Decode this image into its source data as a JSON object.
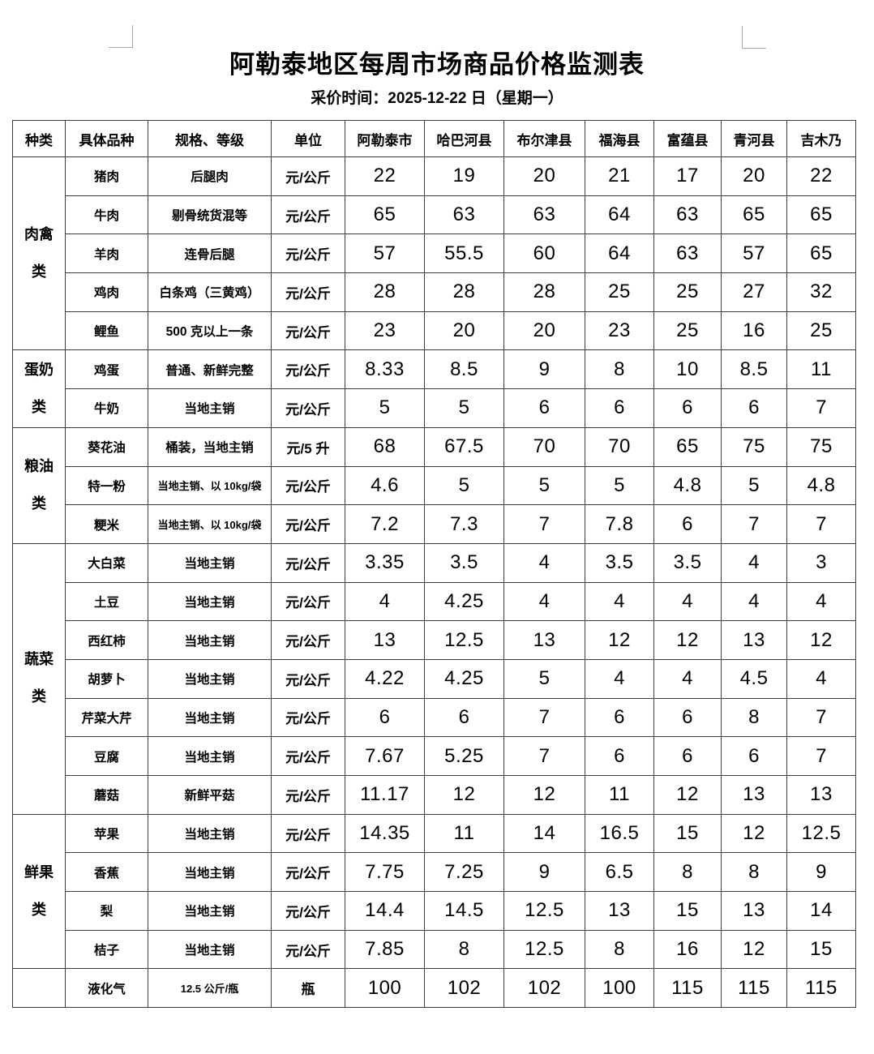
{
  "page": {
    "title": "阿勒泰地区每周市场商品价格监测表",
    "subtitle": "采价时间：2025-12-22 日（星期一）"
  },
  "table": {
    "columns": [
      "种类",
      "具体品种",
      "规格、等级",
      "单位",
      "阿勒泰市",
      "哈巴河县",
      "布尔津县",
      "福海县",
      "富蕴县",
      "青河县",
      "吉木乃"
    ],
    "groups": [
      {
        "category": "肉禽\n类",
        "items": [
          {
            "name": "猪肉",
            "spec": "后腿肉",
            "unit": "元/公斤",
            "prices": [
              "22",
              "19",
              "20",
              "21",
              "17",
              "20",
              "22"
            ]
          },
          {
            "name": "牛肉",
            "spec": "剔骨统货混等",
            "unit": "元/公斤",
            "prices": [
              "65",
              "63",
              "63",
              "64",
              "63",
              "65",
              "65"
            ]
          },
          {
            "name": "羊肉",
            "spec": "连骨后腿",
            "unit": "元/公斤",
            "prices": [
              "57",
              "55.5",
              "60",
              "64",
              "63",
              "57",
              "65"
            ]
          },
          {
            "name": "鸡肉",
            "spec": "白条鸡（三黄鸡）",
            "unit": "元/公斤",
            "prices": [
              "28",
              "28",
              "28",
              "25",
              "25",
              "27",
              "32"
            ]
          },
          {
            "name": "鲤鱼",
            "spec": "500 克以上一条",
            "unit": "元/公斤",
            "prices": [
              "23",
              "20",
              "20",
              "23",
              "25",
              "16",
              "25"
            ]
          }
        ]
      },
      {
        "category": "蛋奶\n类",
        "items": [
          {
            "name": "鸡蛋",
            "spec": "普通、新鲜完整",
            "unit": "元/公斤",
            "prices": [
              "8.33",
              "8.5",
              "9",
              "8",
              "10",
              "8.5",
              "11"
            ]
          },
          {
            "name": "牛奶",
            "spec": "当地主销",
            "unit": "元/公斤",
            "prices": [
              "5",
              "5",
              "6",
              "6",
              "6",
              "6",
              "7"
            ]
          }
        ]
      },
      {
        "category": "粮油\n类",
        "items": [
          {
            "name": "葵花油",
            "spec": "桶装，当地主销",
            "unit": "元/5 升",
            "prices": [
              "68",
              "67.5",
              "70",
              "70",
              "65",
              "75",
              "75"
            ]
          },
          {
            "name": "特一粉",
            "spec": "当地主销、以 10kg/袋",
            "small": true,
            "unit": "元/公斤",
            "prices": [
              "4.6",
              "5",
              "5",
              "5",
              "4.8",
              "5",
              "4.8"
            ]
          },
          {
            "name": "粳米",
            "spec": "当地主销、以 10kg/袋",
            "small": true,
            "unit": "元/公斤",
            "prices": [
              "7.2",
              "7.3",
              "7",
              "7.8",
              "6",
              "7",
              "7"
            ]
          }
        ]
      },
      {
        "category": "蔬菜\n类",
        "items": [
          {
            "name": "大白菜",
            "spec": "当地主销",
            "unit": "元/公斤",
            "prices": [
              "3.35",
              "3.5",
              "4",
              "3.5",
              "3.5",
              "4",
              "3"
            ]
          },
          {
            "name": "土豆",
            "spec": "当地主销",
            "unit": "元/公斤",
            "prices": [
              "4",
              "4.25",
              "4",
              "4",
              "4",
              "4",
              "4"
            ]
          },
          {
            "name": "西红柿",
            "spec": "当地主销",
            "unit": "元/公斤",
            "prices": [
              "13",
              "12.5",
              "13",
              "12",
              "12",
              "13",
              "12"
            ]
          },
          {
            "name": "胡萝卜",
            "spec": "当地主销",
            "unit": "元/公斤",
            "prices": [
              "4.22",
              "4.25",
              "5",
              "4",
              "4",
              "4.5",
              "4"
            ]
          },
          {
            "name": "芹菜大芹",
            "spec": "当地主销",
            "unit": "元/公斤",
            "prices": [
              "6",
              "6",
              "7",
              "6",
              "6",
              "8",
              "7"
            ]
          },
          {
            "name": "豆腐",
            "spec": "当地主销",
            "unit": "元/公斤",
            "prices": [
              "7.67",
              "5.25",
              "7",
              "6",
              "6",
              "6",
              "7"
            ]
          },
          {
            "name": "蘑菇",
            "spec": "新鲜平菇",
            "unit": "元/公斤",
            "prices": [
              "11.17",
              "12",
              "12",
              "11",
              "12",
              "13",
              "13"
            ]
          }
        ]
      },
      {
        "category": "鲜果\n类",
        "items": [
          {
            "name": "苹果",
            "spec": "当地主销",
            "unit": "元/公斤",
            "prices": [
              "14.35",
              "11",
              "14",
              "16.5",
              "15",
              "12",
              "12.5"
            ]
          },
          {
            "name": "香蕉",
            "spec": "当地主销",
            "unit": "元/公斤",
            "prices": [
              "7.75",
              "7.25",
              "9",
              "6.5",
              "8",
              "8",
              "9"
            ]
          },
          {
            "name": "梨",
            "spec": "当地主销",
            "unit": "元/公斤",
            "prices": [
              "14.4",
              "14.5",
              "12.5",
              "13",
              "15",
              "13",
              "14"
            ]
          },
          {
            "name": "桔子",
            "spec": "当地主销",
            "unit": "元/公斤",
            "prices": [
              "7.85",
              "8",
              "12.5",
              "8",
              "16",
              "12",
              "15"
            ]
          }
        ]
      },
      {
        "category": "",
        "items": [
          {
            "name": "液化气",
            "spec": "12.5 公斤/瓶",
            "small": true,
            "unit": "瓶",
            "prices": [
              "100",
              "102",
              "102",
              "100",
              "115",
              "115",
              "115"
            ]
          }
        ]
      }
    ]
  }
}
